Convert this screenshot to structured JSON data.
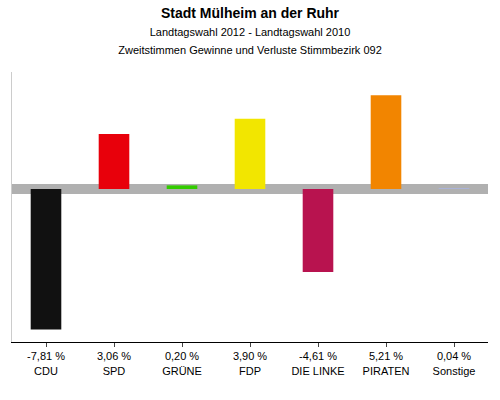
{
  "chart_data": {
    "type": "bar",
    "title": "Stadt Mülheim an der Ruhr",
    "subtitle": [
      "Landtagswahl 2012 - Landtagswahl 2010",
      "Zweitstimmen Gewinne und Verluste Stimmbezirk 092"
    ],
    "categories": [
      "CDU",
      "SPD",
      "GRÜNE",
      "FDP",
      "DIE LINKE",
      "PIRATEN",
      "Sonstige"
    ],
    "values": [
      -7.81,
      3.06,
      0.2,
      3.9,
      -4.61,
      5.21,
      0.04
    ],
    "value_labels": [
      "-7,81 %",
      "3,06 %",
      "0,20 %",
      "3,90 %",
      "-4,61 %",
      "5,21 %",
      "0,04 %"
    ],
    "colors": [
      "#111111",
      "#e8000b",
      "#33cc00",
      "#f2e600",
      "#b8134f",
      "#f28500",
      "#a8b4e8"
    ],
    "ylim": [
      -8.5,
      6.5
    ],
    "tick_labels": "x",
    "grid": false
  }
}
